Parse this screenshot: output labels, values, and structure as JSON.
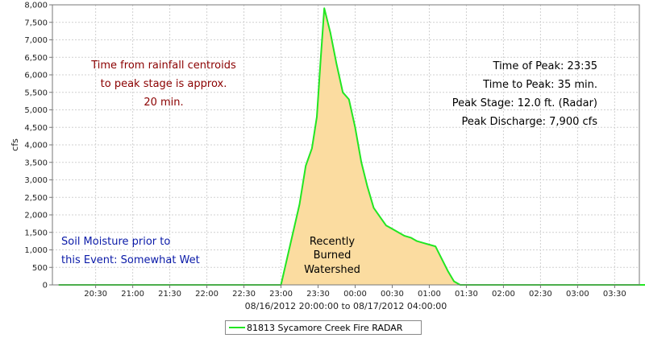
{
  "chart_data": {
    "type": "area",
    "xlabel": "08/16/2012 20:00:00 to 08/17/2012 04:00:00",
    "ylabel": "cfs",
    "ylim": [
      0,
      8000
    ],
    "yticks": [
      0,
      500,
      1000,
      1500,
      2000,
      2500,
      3000,
      3500,
      4000,
      4500,
      5000,
      5500,
      6000,
      6500,
      7000,
      7500,
      8000
    ],
    "ytick_labels": [
      "0",
      "500",
      "1,000",
      "1,500",
      "2,000",
      "2,500",
      "3,000",
      "3,500",
      "4,000",
      "4,500",
      "5,000",
      "5,500",
      "6,000",
      "6,500",
      "7,000",
      "7,500",
      "8,000"
    ],
    "xlim_minutes": [
      1195,
      1670
    ],
    "xticks_minutes": [
      1230,
      1260,
      1290,
      1320,
      1350,
      1380,
      1410,
      1440,
      1470,
      1500,
      1530,
      1560,
      1590,
      1620,
      1650
    ],
    "xtick_labels": [
      "20:30",
      "21:00",
      "21:30",
      "22:00",
      "22:30",
      "23:00",
      "23:30",
      "00:00",
      "00:30",
      "01:00",
      "01:30",
      "02:00",
      "02:30",
      "03:00",
      "03:30"
    ],
    "grid": true,
    "legend_position": "bottom",
    "series": [
      {
        "name": "81813 Sycamore Creek Fire RADAR",
        "color": "#22e622",
        "fill": "#fbdca0",
        "x": [
          "20:00",
          "23:00",
          "23:15",
          "23:20",
          "23:25",
          "23:29",
          "23:32",
          "23:35",
          "23:40",
          "23:45",
          "23:50",
          "23:55",
          "00:00",
          "00:05",
          "00:10",
          "00:15",
          "00:20",
          "00:25",
          "00:30",
          "00:35",
          "00:40",
          "00:45",
          "00:50",
          "00:55",
          "01:00",
          "01:05",
          "01:10",
          "01:15",
          "01:20",
          "01:25",
          "04:00"
        ],
        "values": [
          0,
          0,
          2300,
          3400,
          3900,
          4800,
          6400,
          7900,
          7200,
          6300,
          5500,
          5300,
          4500,
          3500,
          2800,
          2200,
          1950,
          1700,
          1600,
          1500,
          1400,
          1350,
          1250,
          1200,
          1150,
          1100,
          750,
          400,
          100,
          0,
          0
        ]
      }
    ],
    "annotations": {
      "centroid": [
        "Time from rainfall centroids",
        "to peak stage is approx.",
        "20 min."
      ],
      "peak": [
        "Time of Peak: 23:35",
        "Time to Peak: 35 min.",
        "Peak Stage: 12.0 ft. (Radar)",
        "Peak Discharge: 7,900 cfs"
      ],
      "moisture": [
        "Soil Moisture prior to",
        "this Event: Somewhat Wet"
      ],
      "watershed": [
        "Recently",
        "Burned",
        "Watershed"
      ]
    },
    "colors": {
      "annotation_red": "#8b0000",
      "annotation_blue": "#0a1aa8",
      "grid": "#d0d0d0"
    }
  }
}
